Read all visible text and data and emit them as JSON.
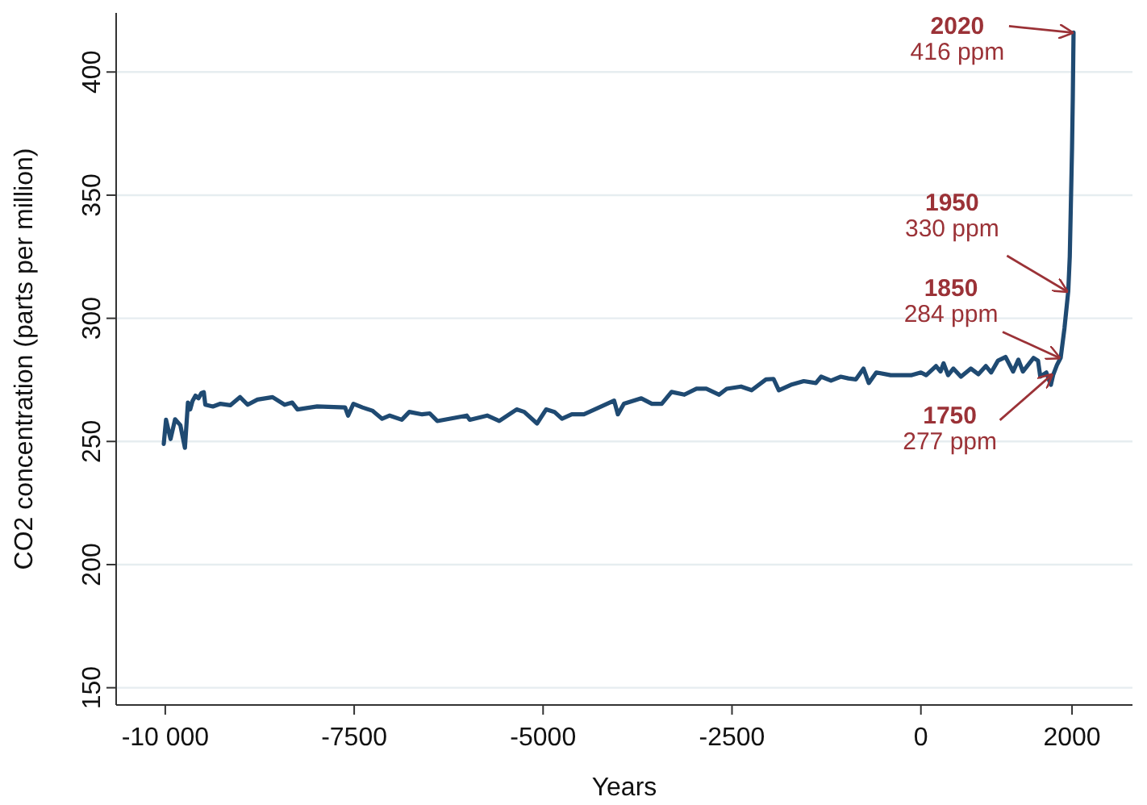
{
  "chart_data": {
    "type": "line",
    "xlabel": "Years",
    "ylabel": "CO2 concentration (parts per million)",
    "xlim": [
      -10650,
      2800
    ],
    "ylim": [
      143,
      424
    ],
    "xticks": [
      {
        "value": -10000,
        "label": "-10 000"
      },
      -7500,
      -5000,
      -2500,
      0,
      2000
    ],
    "yticks": [
      150,
      200,
      250,
      300,
      350,
      400
    ],
    "grid": "y",
    "marker": "none",
    "line_style": "solid",
    "series": [
      {
        "color": "#1f4a72",
        "x": [
          -10020,
          -9990,
          -9930,
          -9870,
          -9800,
          -9770,
          -9740,
          -9700,
          -9670,
          -9640,
          -9600,
          -9560,
          -9520,
          -9490,
          -9470,
          -9370,
          -9270,
          -9140,
          -9010,
          -8910,
          -8780,
          -8580,
          -8420,
          -8320,
          -8250,
          -7990,
          -7620,
          -7580,
          -7510,
          -7390,
          -7260,
          -7130,
          -7030,
          -6870,
          -6770,
          -6600,
          -6500,
          -6400,
          -6010,
          -5970,
          -5740,
          -5580,
          -5350,
          -5250,
          -5080,
          -4960,
          -4850,
          -4750,
          -4620,
          -4460,
          -4060,
          -4010,
          -3930,
          -3700,
          -3560,
          -3430,
          -3300,
          -3130,
          -2970,
          -2840,
          -2670,
          -2570,
          -2380,
          -2240,
          -2050,
          -1950,
          -1880,
          -1720,
          -1550,
          -1390,
          -1320,
          -1190,
          -1060,
          -960,
          -860,
          -760,
          -690,
          -590,
          -400,
          -130,
          0,
          70,
          200,
          260,
          300,
          360,
          430,
          530,
          660,
          760,
          860,
          930,
          1020,
          1120,
          1220,
          1290,
          1350,
          1490,
          1550,
          1580,
          1660,
          1720,
          1750,
          1800,
          1850,
          1900,
          1950,
          1970,
          1990,
          2000,
          2010,
          2020
        ],
        "values": [
          249,
          258.8,
          251,
          259,
          256.6,
          252,
          247.4,
          265.8,
          263,
          266.4,
          268.6,
          267.5,
          269.7,
          270,
          264.9,
          264.2,
          265.3,
          264.7,
          268,
          264.9,
          267,
          268,
          264.9,
          265.8,
          263,
          264.2,
          263.8,
          260.5,
          265.3,
          263.8,
          262.5,
          259.2,
          260.5,
          258.8,
          262,
          261,
          261.4,
          258.3,
          260.5,
          258.8,
          260.5,
          258.3,
          263,
          262,
          257.3,
          263,
          262,
          259.2,
          261,
          261,
          266.6,
          261,
          265.3,
          267.5,
          265.3,
          265.3,
          270.1,
          269,
          271.4,
          271.4,
          269,
          271.4,
          272.3,
          270.8,
          275.2,
          275.4,
          270.8,
          273,
          274.5,
          273.7,
          276.3,
          274.7,
          276.3,
          275.6,
          275.2,
          279.6,
          273.7,
          278,
          276.9,
          276.9,
          278,
          276.9,
          280.6,
          278.4,
          281.7,
          276.9,
          279.6,
          276.3,
          279.6,
          277.3,
          280.6,
          278,
          282.8,
          284.3,
          278.4,
          283.2,
          278.4,
          283.9,
          282.8,
          276.3,
          278,
          273,
          277,
          281,
          284,
          296,
          311,
          325,
          354,
          369,
          389,
          416
        ]
      }
    ],
    "annotations": [
      {
        "text": "2020\n416 ppm",
        "x": 2020,
        "y": 416
      },
      {
        "text": "1950\n330 ppm",
        "x": 1950,
        "y": 311
      },
      {
        "text": "1850\n284 ppm",
        "x": 1850,
        "y": 284
      },
      {
        "text": "1750\n277 ppm",
        "x": 1750,
        "y": 277
      }
    ]
  }
}
